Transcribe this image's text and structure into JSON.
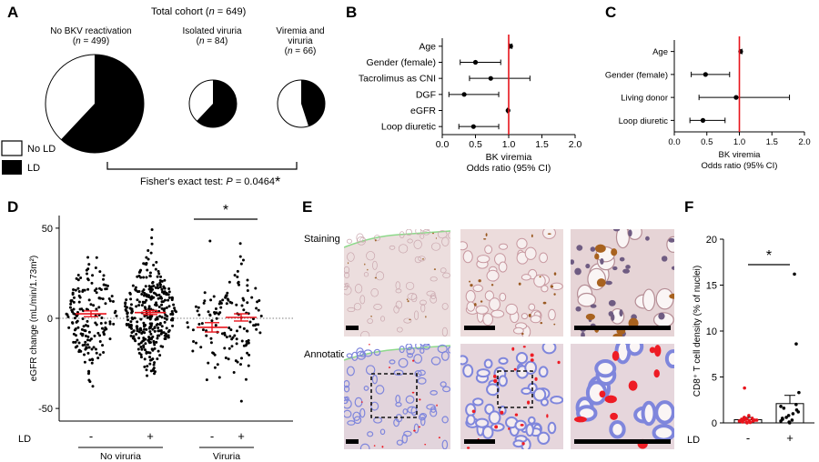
{
  "panels": {
    "A": {
      "letter": "A",
      "title_pre": "Total cohort (",
      "title_n": "n",
      "title_post": " = 649)",
      "groups": [
        {
          "name_lines": [
            "No BKV reactivation"
          ],
          "n_label": "n",
          "n_value": " = 499)",
          "ld_fraction": 0.62
        },
        {
          "name_lines": [
            "Isolated viruria"
          ],
          "n_label": "n",
          "n_value": " = 84)",
          "ld_fraction": 0.62
        },
        {
          "name_lines": [
            "Viremia and",
            "viruria"
          ],
          "n_label": "n",
          "n_value": " = 66)",
          "ld_fraction": 0.45
        }
      ],
      "legend": [
        {
          "label": "No LD",
          "color": "#ffffff"
        },
        {
          "label": "LD",
          "color": "#000000"
        }
      ],
      "test_pre": "Fisher's exact test: ",
      "test_p": "P",
      "test_post": " = 0.0464",
      "star": "*"
    },
    "B": {
      "letter": "B",
      "chart_data": {
        "type": "scatter",
        "subtype": "forest",
        "xlabel": "BK viremia",
        "xlabel2": "Odds ratio (95% CI)",
        "xlim": [
          0,
          2.0
        ],
        "xticks": [
          "0.0",
          "0.5",
          "1.0",
          "1.5",
          "2.0"
        ],
        "reference": 1.0,
        "rows": [
          {
            "label": "Age",
            "or": 1.03,
            "lo": 1.01,
            "hi": 1.05
          },
          {
            "label": "Gender (female)",
            "or": 0.5,
            "lo": 0.27,
            "hi": 0.88
          },
          {
            "label": "Tacrolimus as CNI",
            "or": 0.73,
            "lo": 0.41,
            "hi": 1.32
          },
          {
            "label": "DGF",
            "or": 0.33,
            "lo": 0.1,
            "hi": 0.85
          },
          {
            "label": "eGFR",
            "or": 0.99,
            "lo": 0.98,
            "hi": 1.0
          },
          {
            "label": "Loop diuretic",
            "or": 0.47,
            "lo": 0.25,
            "hi": 0.85
          }
        ]
      }
    },
    "C": {
      "letter": "C",
      "chart_data": {
        "type": "scatter",
        "subtype": "forest",
        "xlabel": "BK viremia",
        "xlabel2": "Odds ratio (95% CI)",
        "xlim": [
          0,
          2.0
        ],
        "xticks": [
          "0.0",
          "0.5",
          "1.0",
          "1.5",
          "2.0"
        ],
        "reference": 1.0,
        "rows": [
          {
            "label": "Age",
            "or": 1.02,
            "lo": 1.0,
            "hi": 1.04
          },
          {
            "label": "Gender (female)",
            "or": 0.48,
            "lo": 0.26,
            "hi": 0.85
          },
          {
            "label": "Living donor",
            "or": 0.95,
            "lo": 0.38,
            "hi": 1.77
          },
          {
            "label": "Loop diuretic",
            "or": 0.44,
            "lo": 0.24,
            "hi": 0.78
          }
        ]
      }
    },
    "D": {
      "letter": "D",
      "chart_data": {
        "type": "scatter",
        "subtype": "dot-plot",
        "ylabel": "eGFR change (mL/min/1.73m²)",
        "ylim": [
          -57,
          57
        ],
        "yticks": [
          -50,
          0,
          50
        ],
        "row_label": "LD",
        "categories": [
          "-",
          "+",
          "-",
          "+"
        ],
        "groups": [
          {
            "name": "No viruria",
            "members": [
              0,
              1
            ]
          },
          {
            "name": "Viruria",
            "members": [
              2,
              3
            ]
          }
        ],
        "series": [
          {
            "ld": "-",
            "mean": 2.5,
            "sem": 1.6,
            "n": 170,
            "sd": 15
          },
          {
            "ld": "+",
            "mean": 3.2,
            "sem": 1.1,
            "n": 330,
            "sd": 14
          },
          {
            "ld": "-",
            "mean": -5.0,
            "sem": 2.6,
            "n": 55,
            "sd": 15
          },
          {
            "ld": "+",
            "mean": 0.5,
            "sem": 2.0,
            "n": 85,
            "sd": 16
          }
        ],
        "significance": {
          "between": [
            2,
            3
          ],
          "label": "*"
        }
      }
    },
    "E": {
      "letter": "E",
      "rows": [
        "Staining",
        "Annotation"
      ]
    },
    "F": {
      "letter": "F",
      "chart_data": {
        "type": "bar",
        "ylabel": "CD8⁺ T cell density (% of nuclei)",
        "ylim": [
          0,
          20
        ],
        "yticks": [
          0,
          5,
          10,
          15,
          20
        ],
        "row_label": "LD",
        "categories": [
          "-",
          "+"
        ],
        "values": [
          0.35,
          2.1
        ],
        "sem": [
          0.25,
          0.9
        ],
        "points": [
          [
            0.0,
            0.05,
            0.1,
            0.1,
            0.15,
            0.2,
            0.2,
            0.25,
            0.3,
            0.3,
            0.35,
            0.4,
            0.45,
            0.5,
            0.6,
            0.8,
            3.8
          ],
          [
            0.0,
            0.1,
            0.2,
            0.3,
            0.4,
            0.5,
            0.6,
            0.8,
            1.0,
            1.2,
            1.4,
            1.6,
            1.8,
            2.0,
            3.3,
            8.6,
            16.2
          ]
        ],
        "significance": {
          "label": "*"
        }
      }
    }
  },
  "colors": {
    "red": "#e8141c",
    "tissue_bg": "#eadcdc",
    "annot_blue": "#7f86dc",
    "annot_red": "#ee1c25",
    "annot_green": "#8dd98a"
  }
}
